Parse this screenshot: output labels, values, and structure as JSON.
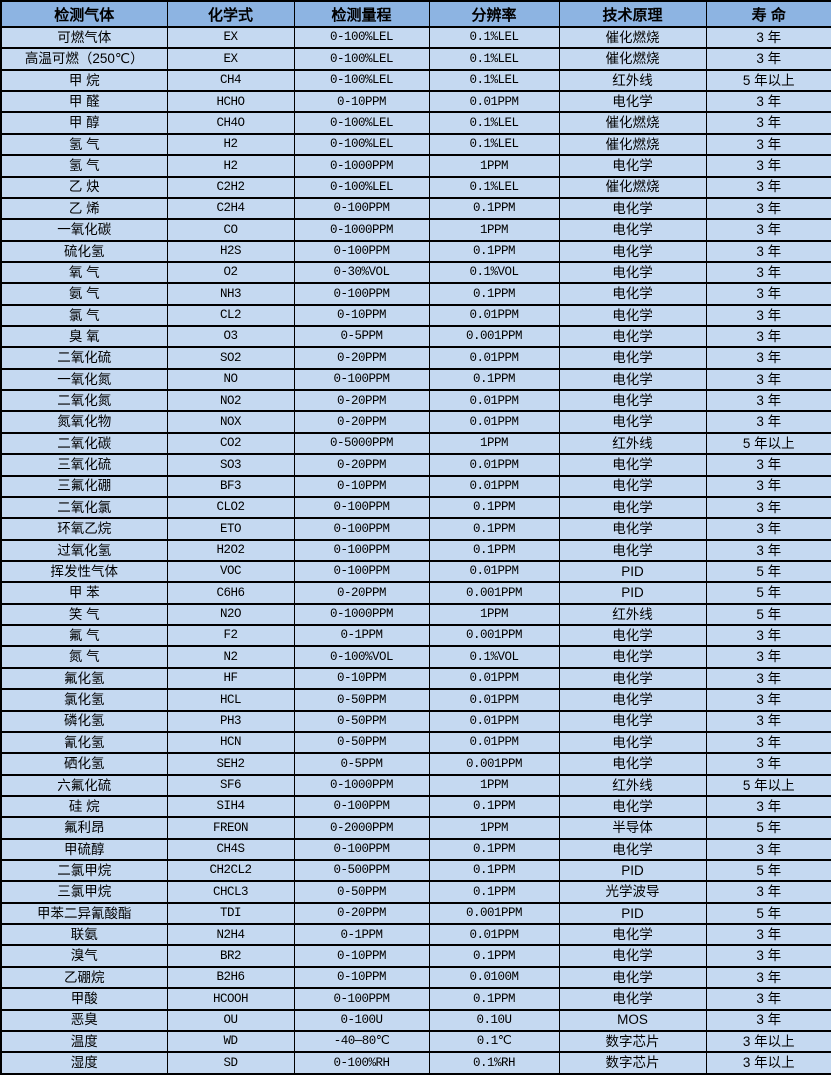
{
  "colors": {
    "header_bg": "#8DB4E2",
    "row_bg": "#C5D9F1",
    "border": "#000000",
    "text": "#000000"
  },
  "table": {
    "columns": [
      {
        "label": "检测气体"
      },
      {
        "label": "化学式"
      },
      {
        "label": "检测量程"
      },
      {
        "label": "分辨率"
      },
      {
        "label": "技术原理"
      },
      {
        "label": "寿 命"
      }
    ],
    "rows": [
      {
        "gas": "可燃气体",
        "formula": "EX",
        "range": "0-100%LEL",
        "resolution": "0.1%LEL",
        "principle": "催化燃烧",
        "life": "3 年"
      },
      {
        "gas": "高温可燃（250℃）",
        "formula": "EX",
        "range": "0-100%LEL",
        "resolution": "0.1%LEL",
        "principle": "催化燃烧",
        "life": "3 年"
      },
      {
        "gas": "甲 烷",
        "formula": "CH4",
        "range": "0-100%LEL",
        "resolution": "0.1%LEL",
        "principle": "红外线",
        "life": "5 年以上"
      },
      {
        "gas": "甲 醛",
        "formula": "HCHO",
        "range": "0-10PPM",
        "resolution": "0.01PPM",
        "principle": "电化学",
        "life": "3 年"
      },
      {
        "gas": "甲 醇",
        "formula": "CH4O",
        "range": "0-100%LEL",
        "resolution": "0.1%LEL",
        "principle": "催化燃烧",
        "life": "3 年"
      },
      {
        "gas": "氢 气",
        "formula": "H2",
        "range": "0-100%LEL",
        "resolution": "0.1%LEL",
        "principle": "催化燃烧",
        "life": "3 年"
      },
      {
        "gas": "氢 气",
        "formula": "H2",
        "range": "0-1000PPM",
        "resolution": "1PPM",
        "principle": "电化学",
        "life": "3 年"
      },
      {
        "gas": "乙 炔",
        "formula": "C2H2",
        "range": "0-100%LEL",
        "resolution": "0.1%LEL",
        "principle": "催化燃烧",
        "life": "3 年"
      },
      {
        "gas": "乙 烯",
        "formula": "C2H4",
        "range": "0-100PPM",
        "resolution": "0.1PPM",
        "principle": "电化学",
        "life": "3 年"
      },
      {
        "gas": "一氧化碳",
        "formula": "CO",
        "range": "0-1000PPM",
        "resolution": "1PPM",
        "principle": "电化学",
        "life": "3 年"
      },
      {
        "gas": "硫化氢",
        "formula": "H2S",
        "range": "0-100PPM",
        "resolution": "0.1PPM",
        "principle": "电化学",
        "life": "3 年"
      },
      {
        "gas": "氧 气",
        "formula": "O2",
        "range": "0-30%VOL",
        "resolution": "0.1%VOL",
        "principle": "电化学",
        "life": "3 年"
      },
      {
        "gas": "氨 气",
        "formula": "NH3",
        "range": "0-100PPM",
        "resolution": "0.1PPM",
        "principle": "电化学",
        "life": "3 年"
      },
      {
        "gas": "氯 气",
        "formula": "CL2",
        "range": "0-10PPM",
        "resolution": "0.01PPM",
        "principle": "电化学",
        "life": "3 年"
      },
      {
        "gas": "臭 氧",
        "formula": "O3",
        "range": "0-5PPM",
        "resolution": "0.001PPM",
        "principle": "电化学",
        "life": "3 年"
      },
      {
        "gas": "二氧化硫",
        "formula": "SO2",
        "range": "0-20PPM",
        "resolution": "0.01PPM",
        "principle": "电化学",
        "life": "3 年"
      },
      {
        "gas": "一氧化氮",
        "formula": "NO",
        "range": "0-100PPM",
        "resolution": "0.1PPM",
        "principle": "电化学",
        "life": "3 年"
      },
      {
        "gas": "二氧化氮",
        "formula": "NO2",
        "range": "0-20PPM",
        "resolution": "0.01PPM",
        "principle": "电化学",
        "life": "3 年"
      },
      {
        "gas": "氮氧化物",
        "formula": "NOX",
        "range": "0-20PPM",
        "resolution": "0.01PPM",
        "principle": "电化学",
        "life": "3 年"
      },
      {
        "gas": "二氧化碳",
        "formula": "CO2",
        "range": "0-5000PPM",
        "resolution": "1PPM",
        "principle": "红外线",
        "life": "5 年以上"
      },
      {
        "gas": "三氧化硫",
        "formula": "SO3",
        "range": "0-20PPM",
        "resolution": "0.01PPM",
        "principle": "电化学",
        "life": "3 年"
      },
      {
        "gas": "三氟化硼",
        "formula": "BF3",
        "range": "0-10PPM",
        "resolution": "0.01PPM",
        "principle": "电化学",
        "life": "3 年"
      },
      {
        "gas": "二氧化氯",
        "formula": "CLO2",
        "range": "0-100PPM",
        "resolution": "0.1PPM",
        "principle": "电化学",
        "life": "3 年"
      },
      {
        "gas": "环氧乙烷",
        "formula": "ETO",
        "range": "0-100PPM",
        "resolution": "0.1PPM",
        "principle": "电化学",
        "life": "3 年"
      },
      {
        "gas": "过氧化氢",
        "formula": "H2O2",
        "range": "0-100PPM",
        "resolution": "0.1PPM",
        "principle": "电化学",
        "life": "3 年"
      },
      {
        "gas": "挥发性气体",
        "formula": "VOC",
        "range": "0-100PPM",
        "resolution": "0.01PPM",
        "principle": "PID",
        "life": "5 年"
      },
      {
        "gas": "甲 苯",
        "formula": "C6H6",
        "range": "0-20PPM",
        "resolution": "0.001PPM",
        "principle": "PID",
        "life": "5 年"
      },
      {
        "gas": "笑 气",
        "formula": "N2O",
        "range": "0-1000PPM",
        "resolution": "1PPM",
        "principle": "红外线",
        "life": "5 年"
      },
      {
        "gas": "氟 气",
        "formula": "F2",
        "range": "0-1PPM",
        "resolution": "0.001PPM",
        "principle": "电化学",
        "life": "3 年"
      },
      {
        "gas": "氮 气",
        "formula": "N2",
        "range": "0-100%VOL",
        "resolution": "0.1%VOL",
        "principle": "电化学",
        "life": "3 年"
      },
      {
        "gas": "氟化氢",
        "formula": "HF",
        "range": "0-10PPM",
        "resolution": "0.01PPM",
        "principle": "电化学",
        "life": "3 年"
      },
      {
        "gas": "氯化氢",
        "formula": "HCL",
        "range": "0-50PPM",
        "resolution": "0.01PPM",
        "principle": "电化学",
        "life": "3 年"
      },
      {
        "gas": "磷化氢",
        "formula": "PH3",
        "range": "0-50PPM",
        "resolution": "0.01PPM",
        "principle": "电化学",
        "life": "3 年"
      },
      {
        "gas": "氰化氢",
        "formula": "HCN",
        "range": "0-50PPM",
        "resolution": "0.01PPM",
        "principle": "电化学",
        "life": "3 年"
      },
      {
        "gas": "硒化氢",
        "formula": "SEH2",
        "range": "0-5PPM",
        "resolution": "0.001PPM",
        "principle": "电化学",
        "life": "3 年"
      },
      {
        "gas": "六氟化硫",
        "formula": "SF6",
        "range": "0-1000PPM",
        "resolution": "1PPM",
        "principle": "红外线",
        "life": "5 年以上"
      },
      {
        "gas": "硅 烷",
        "formula": "SIH4",
        "range": "0-100PPM",
        "resolution": "0.1PPM",
        "principle": "电化学",
        "life": "3 年"
      },
      {
        "gas": "氟利昂",
        "formula": "FREON",
        "range": "0-2000PPM",
        "resolution": "1PPM",
        "principle": "半导体",
        "life": "5 年"
      },
      {
        "gas": "甲硫醇",
        "formula": "CH4S",
        "range": "0-100PPM",
        "resolution": "0.1PPM",
        "principle": "电化学",
        "life": "3 年"
      },
      {
        "gas": "二氯甲烷",
        "formula": "CH2CL2",
        "range": "0-500PPM",
        "resolution": "0.1PPM",
        "principle": "PID",
        "life": "5 年"
      },
      {
        "gas": "三氯甲烷",
        "formula": "CHCL3",
        "range": "0-50PPM",
        "resolution": "0.1PPM",
        "principle": "光学波导",
        "life": "3 年"
      },
      {
        "gas": "甲苯二异氰酸酯",
        "formula": "TDI",
        "range": "0-20PPM",
        "resolution": "0.001PPM",
        "principle": "PID",
        "life": "5 年"
      },
      {
        "gas": "联氨",
        "formula": "N2H4",
        "range": "0-1PPM",
        "resolution": "0.01PPM",
        "principle": "电化学",
        "life": "3 年"
      },
      {
        "gas": "溴气",
        "formula": "BR2",
        "range": "0-10PPM",
        "resolution": "0.1PPM",
        "principle": "电化学",
        "life": "3 年"
      },
      {
        "gas": "乙硼烷",
        "formula": "B2H6",
        "range": "0-10PPM",
        "resolution": "0.0100M",
        "principle": "电化学",
        "life": "3 年"
      },
      {
        "gas": "甲酸",
        "formula": "HCOOH",
        "range": "0-100PPM",
        "resolution": "0.1PPM",
        "principle": "电化学",
        "life": "3 年"
      },
      {
        "gas": "恶臭",
        "formula": "OU",
        "range": "0-100U",
        "resolution": "0.10U",
        "principle": "MOS",
        "life": "3 年"
      },
      {
        "gas": "温度",
        "formula": "WD",
        "range": "-40—80℃",
        "resolution": "0.1℃",
        "principle": "数字芯片",
        "life": "3 年以上"
      },
      {
        "gas": "湿度",
        "formula": "SD",
        "range": "0-100%RH",
        "resolution": "0.1%RH",
        "principle": "数字芯片",
        "life": "3 年以上"
      }
    ]
  }
}
